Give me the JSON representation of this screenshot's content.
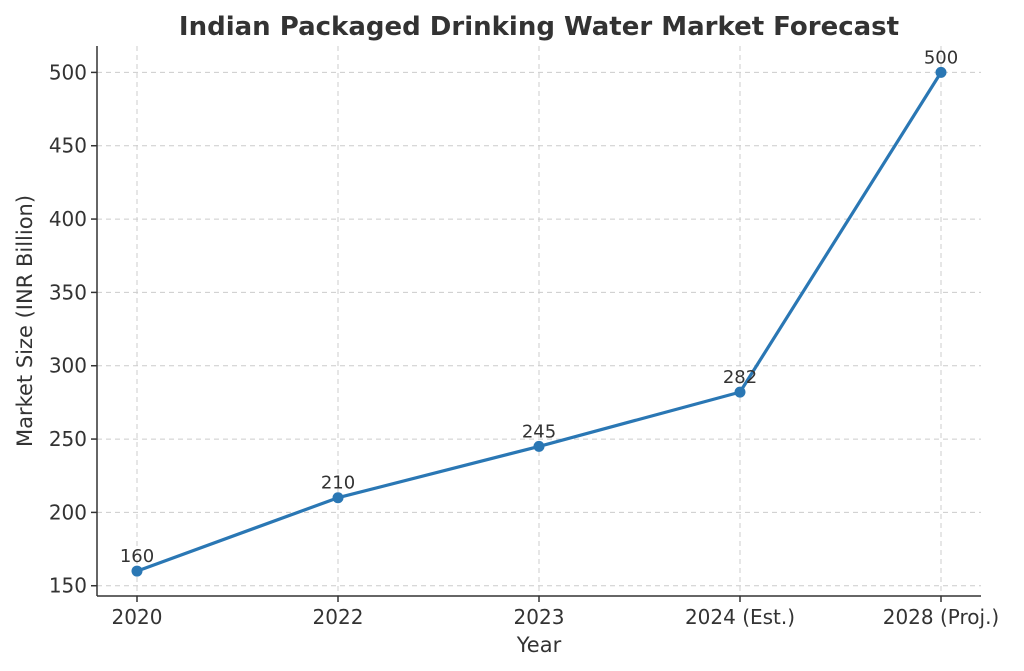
{
  "chart_data": {
    "type": "line",
    "title": "Indian Packaged Drinking Water Market Forecast",
    "xlabel": "Year",
    "ylabel": "Market Size (INR Billion)",
    "categories": [
      "2020",
      "2022",
      "2023",
      "2024 (Est.)",
      "2028 (Proj.)"
    ],
    "series": [
      {
        "values": [
          160,
          210,
          245,
          282,
          500
        ]
      }
    ],
    "ylim": [
      143,
      518
    ],
    "yticks": [
      150,
      200,
      250,
      300,
      350,
      400,
      450,
      500
    ],
    "grid": true,
    "data_labels": true,
    "line_color": "#2a77b4"
  }
}
